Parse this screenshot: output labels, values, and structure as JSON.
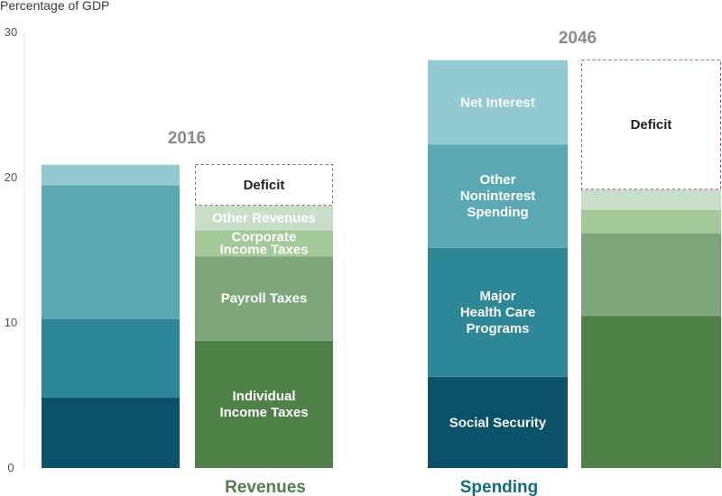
{
  "colors": {
    "social_security": "#0b5268",
    "health_care": "#2d8796",
    "other_noninterest": "#5aa8b3",
    "net_interest": "#93c9d1",
    "individual": "#4e8048",
    "payroll": "#7ea67a",
    "corporate": "#a3c999",
    "other_revenues": "#c9dec8",
    "deficit_border": "#9c4f8c",
    "revenues_label": "#4e8048",
    "spending_label": "#0f6d80"
  },
  "chart_data": {
    "type": "bar",
    "stacked": true,
    "ylabel": "Percentage of GDP",
    "ylim": [
      0,
      30
    ],
    "yticks": [
      0,
      10,
      20,
      30
    ],
    "grid": false,
    "groups": [
      {
        "year": "2016",
        "spending": [
          {
            "name": "Social Security",
            "value": 4.9
          },
          {
            "name": "Major Health Care Programs",
            "value": 5.4
          },
          {
            "name": "Other Noninterest Spending",
            "value": 9.2
          },
          {
            "name": "Net Interest",
            "value": 1.4
          }
        ],
        "revenues": [
          {
            "name": "Individual Income Taxes",
            "value": 8.8
          },
          {
            "name": "Payroll Taxes",
            "value": 5.8
          },
          {
            "name": "Corporate Income Taxes",
            "value": 1.8
          },
          {
            "name": "Other Revenues",
            "value": 1.7
          }
        ],
        "deficit": 2.8
      },
      {
        "year": "2046",
        "spending": [
          {
            "name": "Social Security",
            "value": 6.3
          },
          {
            "name": "Major Health Care Programs",
            "value": 8.9
          },
          {
            "name": "Other Noninterest Spending",
            "value": 7.1
          },
          {
            "name": "Net Interest",
            "value": 5.8
          }
        ],
        "revenues": [
          {
            "name": "Individual Income Taxes",
            "value": 10.5
          },
          {
            "name": "Payroll Taxes",
            "value": 5.7
          },
          {
            "name": "Corporate Income Taxes",
            "value": 1.6
          },
          {
            "name": "Other Revenues",
            "value": 1.4
          }
        ],
        "deficit": 8.9
      }
    ]
  },
  "labels": {
    "revenues_bar": {
      "deficit": "Deficit",
      "other_revenues": "Other Revenues",
      "corporate": [
        "Corporate",
        "Income Taxes"
      ],
      "payroll": "Payroll Taxes",
      "individual": [
        "Individual",
        "Income Taxes"
      ]
    },
    "spending_bar": {
      "net_interest": "Net Interest",
      "other_noninterest": [
        "Other",
        "Noninterest",
        "Spending"
      ],
      "health_care": [
        "Major",
        "Health Care",
        "Programs"
      ],
      "social_security": "Social Security"
    },
    "deficit_2046": "Deficit"
  },
  "categories": {
    "revenues": "Revenues",
    "spending": "Spending"
  }
}
